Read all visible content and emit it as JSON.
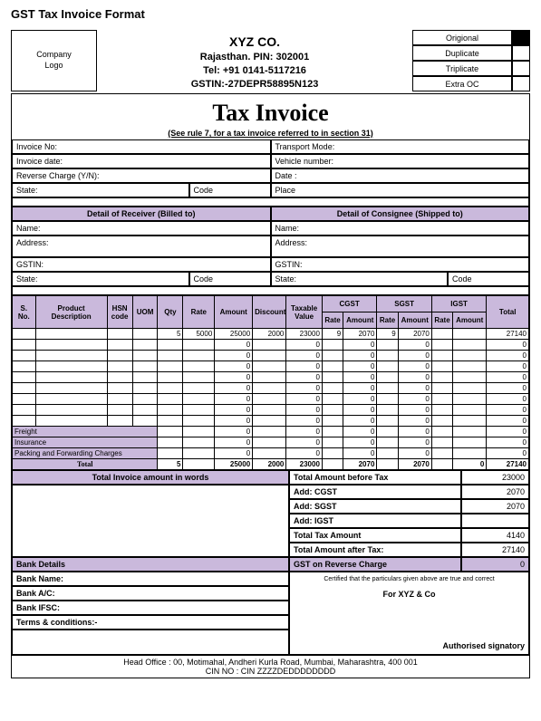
{
  "page_title": "GST Tax Invoice  Format",
  "company": {
    "logo_text": "Company\nLogo",
    "name": "XYZ CO.",
    "line2": "Rajasthan. PIN: 302001",
    "tel": "Tel: +91 0141-5117216",
    "gstin": "GSTIN:-27DEPR58895N123"
  },
  "copies": [
    {
      "label": "Origional",
      "marked": true
    },
    {
      "label": "Duplicate",
      "marked": false
    },
    {
      "label": "Triplicate",
      "marked": false
    },
    {
      "label": "Extra OC",
      "marked": false
    }
  ],
  "title": {
    "main": "Tax Invoice",
    "sub": "(See rule 7, for a tax invoice referred to in section 31)"
  },
  "info_left": [
    "Invoice No:",
    "Invoice date:",
    "Reverse Charge (Y/N):"
  ],
  "info_right": [
    "Transport Mode:",
    "Vehicle number:",
    "Date :"
  ],
  "state_label": "State:",
  "code_label": "Code",
  "place_label": "Place",
  "receiver_hdr": "Detail of Receiver (Billed to)",
  "consignee_hdr": "Detail of Consignee (Shipped to)",
  "name_label": "Name:",
  "address_label": "Address:",
  "gstin_label": "GSTIN:",
  "item_headers": {
    "sno": "S. No.",
    "desc": "Product Description",
    "hsn": "HSN code",
    "uom": "UOM",
    "qty": "Qty",
    "rate": "Rate",
    "amount": "Amount",
    "discount": "Discount",
    "taxable": "Taxable Value",
    "cgst": "CGST",
    "sgst": "SGST",
    "igst": "IGST",
    "total": "Total",
    "sub_rate": "Rate",
    "sub_amt": "Amount"
  },
  "rows": [
    {
      "qty": "5",
      "rate": "5000",
      "amount": "25000",
      "discount": "2000",
      "taxable": "23000",
      "cgst_r": "9",
      "cgst_a": "2070",
      "sgst_r": "9",
      "sgst_a": "2070",
      "igst_r": "",
      "igst_a": "",
      "total": "27140"
    },
    {
      "qty": "",
      "rate": "",
      "amount": "0",
      "discount": "",
      "taxable": "0",
      "cgst_r": "",
      "cgst_a": "0",
      "sgst_r": "",
      "sgst_a": "0",
      "igst_r": "",
      "igst_a": "",
      "total": "0"
    },
    {
      "qty": "",
      "rate": "",
      "amount": "0",
      "discount": "",
      "taxable": "0",
      "cgst_r": "",
      "cgst_a": "0",
      "sgst_r": "",
      "sgst_a": "0",
      "igst_r": "",
      "igst_a": "",
      "total": "0"
    },
    {
      "qty": "",
      "rate": "",
      "amount": "0",
      "discount": "",
      "taxable": "0",
      "cgst_r": "",
      "cgst_a": "0",
      "sgst_r": "",
      "sgst_a": "0",
      "igst_r": "",
      "igst_a": "",
      "total": "0"
    },
    {
      "qty": "",
      "rate": "",
      "amount": "0",
      "discount": "",
      "taxable": "0",
      "cgst_r": "",
      "cgst_a": "0",
      "sgst_r": "",
      "sgst_a": "0",
      "igst_r": "",
      "igst_a": "",
      "total": "0"
    },
    {
      "qty": "",
      "rate": "",
      "amount": "0",
      "discount": "",
      "taxable": "0",
      "cgst_r": "",
      "cgst_a": "0",
      "sgst_r": "",
      "sgst_a": "0",
      "igst_r": "",
      "igst_a": "",
      "total": "0"
    },
    {
      "qty": "",
      "rate": "",
      "amount": "0",
      "discount": "",
      "taxable": "0",
      "cgst_r": "",
      "cgst_a": "0",
      "sgst_r": "",
      "sgst_a": "0",
      "igst_r": "",
      "igst_a": "",
      "total": "0"
    },
    {
      "qty": "",
      "rate": "",
      "amount": "0",
      "discount": "",
      "taxable": "0",
      "cgst_r": "",
      "cgst_a": "0",
      "sgst_r": "",
      "sgst_a": "0",
      "igst_r": "",
      "igst_a": "",
      "total": "0"
    },
    {
      "qty": "",
      "rate": "",
      "amount": "0",
      "discount": "",
      "taxable": "0",
      "cgst_r": "",
      "cgst_a": "0",
      "sgst_r": "",
      "sgst_a": "0",
      "igst_r": "",
      "igst_a": "",
      "total": "0"
    }
  ],
  "charges": [
    {
      "label": "Freight",
      "amount": "0",
      "taxable": "0",
      "cgst_a": "0",
      "sgst_a": "0",
      "igst_a": "",
      "total": "0"
    },
    {
      "label": "Insurance",
      "amount": "0",
      "taxable": "0",
      "cgst_a": "0",
      "sgst_a": "0",
      "igst_a": "",
      "total": "0"
    },
    {
      "label": "Packing and Forwarding Charges",
      "amount": "0",
      "taxable": "0",
      "cgst_a": "0",
      "sgst_a": "0",
      "igst_a": "",
      "total": "0"
    }
  ],
  "grand_total": {
    "label": "Total",
    "qty": "5",
    "amount": "25000",
    "discount": "2000",
    "taxable": "23000",
    "cgst_a": "2070",
    "sgst_a": "2070",
    "igst_a": "0",
    "total": "27140"
  },
  "words_label": "Total Invoice amount in words",
  "summary": [
    {
      "label": "Total Amount before Tax",
      "val": "23000"
    },
    {
      "label": "Add: CGST",
      "val": "2070"
    },
    {
      "label": "Add: SGST",
      "val": "2070"
    },
    {
      "label": "Add: IGST",
      "val": ""
    },
    {
      "label": "Total Tax Amount",
      "val": "4140"
    },
    {
      "label": "Total Amount after Tax:",
      "val": "27140"
    }
  ],
  "gst_rev": {
    "label": "GST on Reverse Charge",
    "val": "0"
  },
  "bank_hdr": "Bank Details",
  "bank_rows": [
    "Bank Name:",
    "Bank A/C:",
    "Bank IFSC:",
    "Terms & conditions:-"
  ],
  "sign": {
    "note": "Certified that the particulars given above are true and correct",
    "co": "For XYZ & Co",
    "auth": "Authorised signatory"
  },
  "footer": {
    "addr": "Head Office : 00, Motimahal, Andheri Kurla Road, Mumbai, Maharashtra, 400 001",
    "cin": "CIN NO : CIN ZZZZDEDDDDDDDD"
  },
  "colors": {
    "purple": "#cab9dc"
  }
}
